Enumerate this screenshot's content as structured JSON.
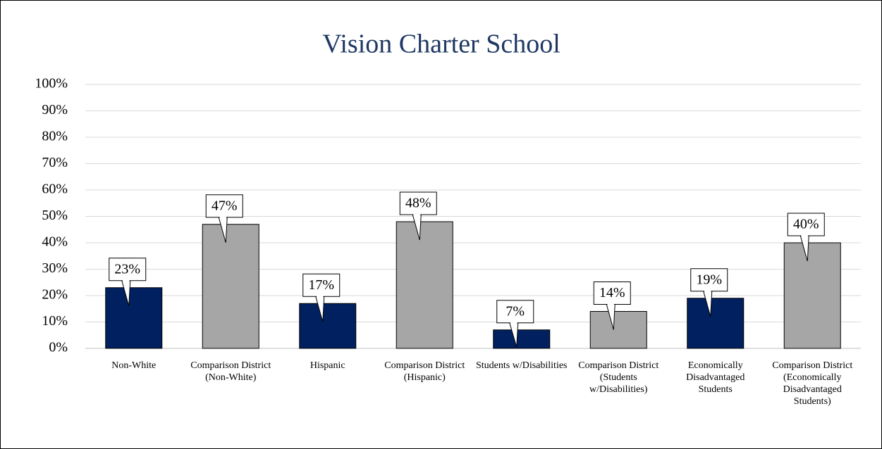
{
  "chart_data": {
    "type": "bar",
    "title": "Vision Charter School",
    "categories": [
      "Non-White",
      "Comparison District (Non-White)",
      "Hispanic",
      "Comparison District (Hispanic)",
      "Students w/Disabilities",
      "Comparison District (Students w/Disabilities)",
      "Economically Disadvantaged Students",
      "Comparison District (Economically Disadvantaged Students)"
    ],
    "values": [
      23,
      47,
      17,
      48,
      7,
      14,
      19,
      40
    ],
    "value_labels": [
      "23%",
      "47%",
      "17%",
      "48%",
      "7%",
      "14%",
      "19%",
      "40%"
    ],
    "colors": [
      "#002060",
      "#a6a6a6",
      "#002060",
      "#a6a6a6",
      "#002060",
      "#a6a6a6",
      "#002060",
      "#a6a6a6"
    ],
    "ylim": [
      0,
      100
    ],
    "yticks": [
      {
        "value": 0,
        "label": "0%"
      },
      {
        "value": 10,
        "label": "10%"
      },
      {
        "value": 20,
        "label": "20%"
      },
      {
        "value": 30,
        "label": "30%"
      },
      {
        "value": 40,
        "label": "40%"
      },
      {
        "value": 50,
        "label": "50%"
      },
      {
        "value": 60,
        "label": "60%"
      },
      {
        "value": 70,
        "label": "70%"
      },
      {
        "value": 80,
        "label": "80%"
      },
      {
        "value": 90,
        "label": "90%"
      },
      {
        "value": 100,
        "label": "100%"
      }
    ],
    "grid": true
  }
}
